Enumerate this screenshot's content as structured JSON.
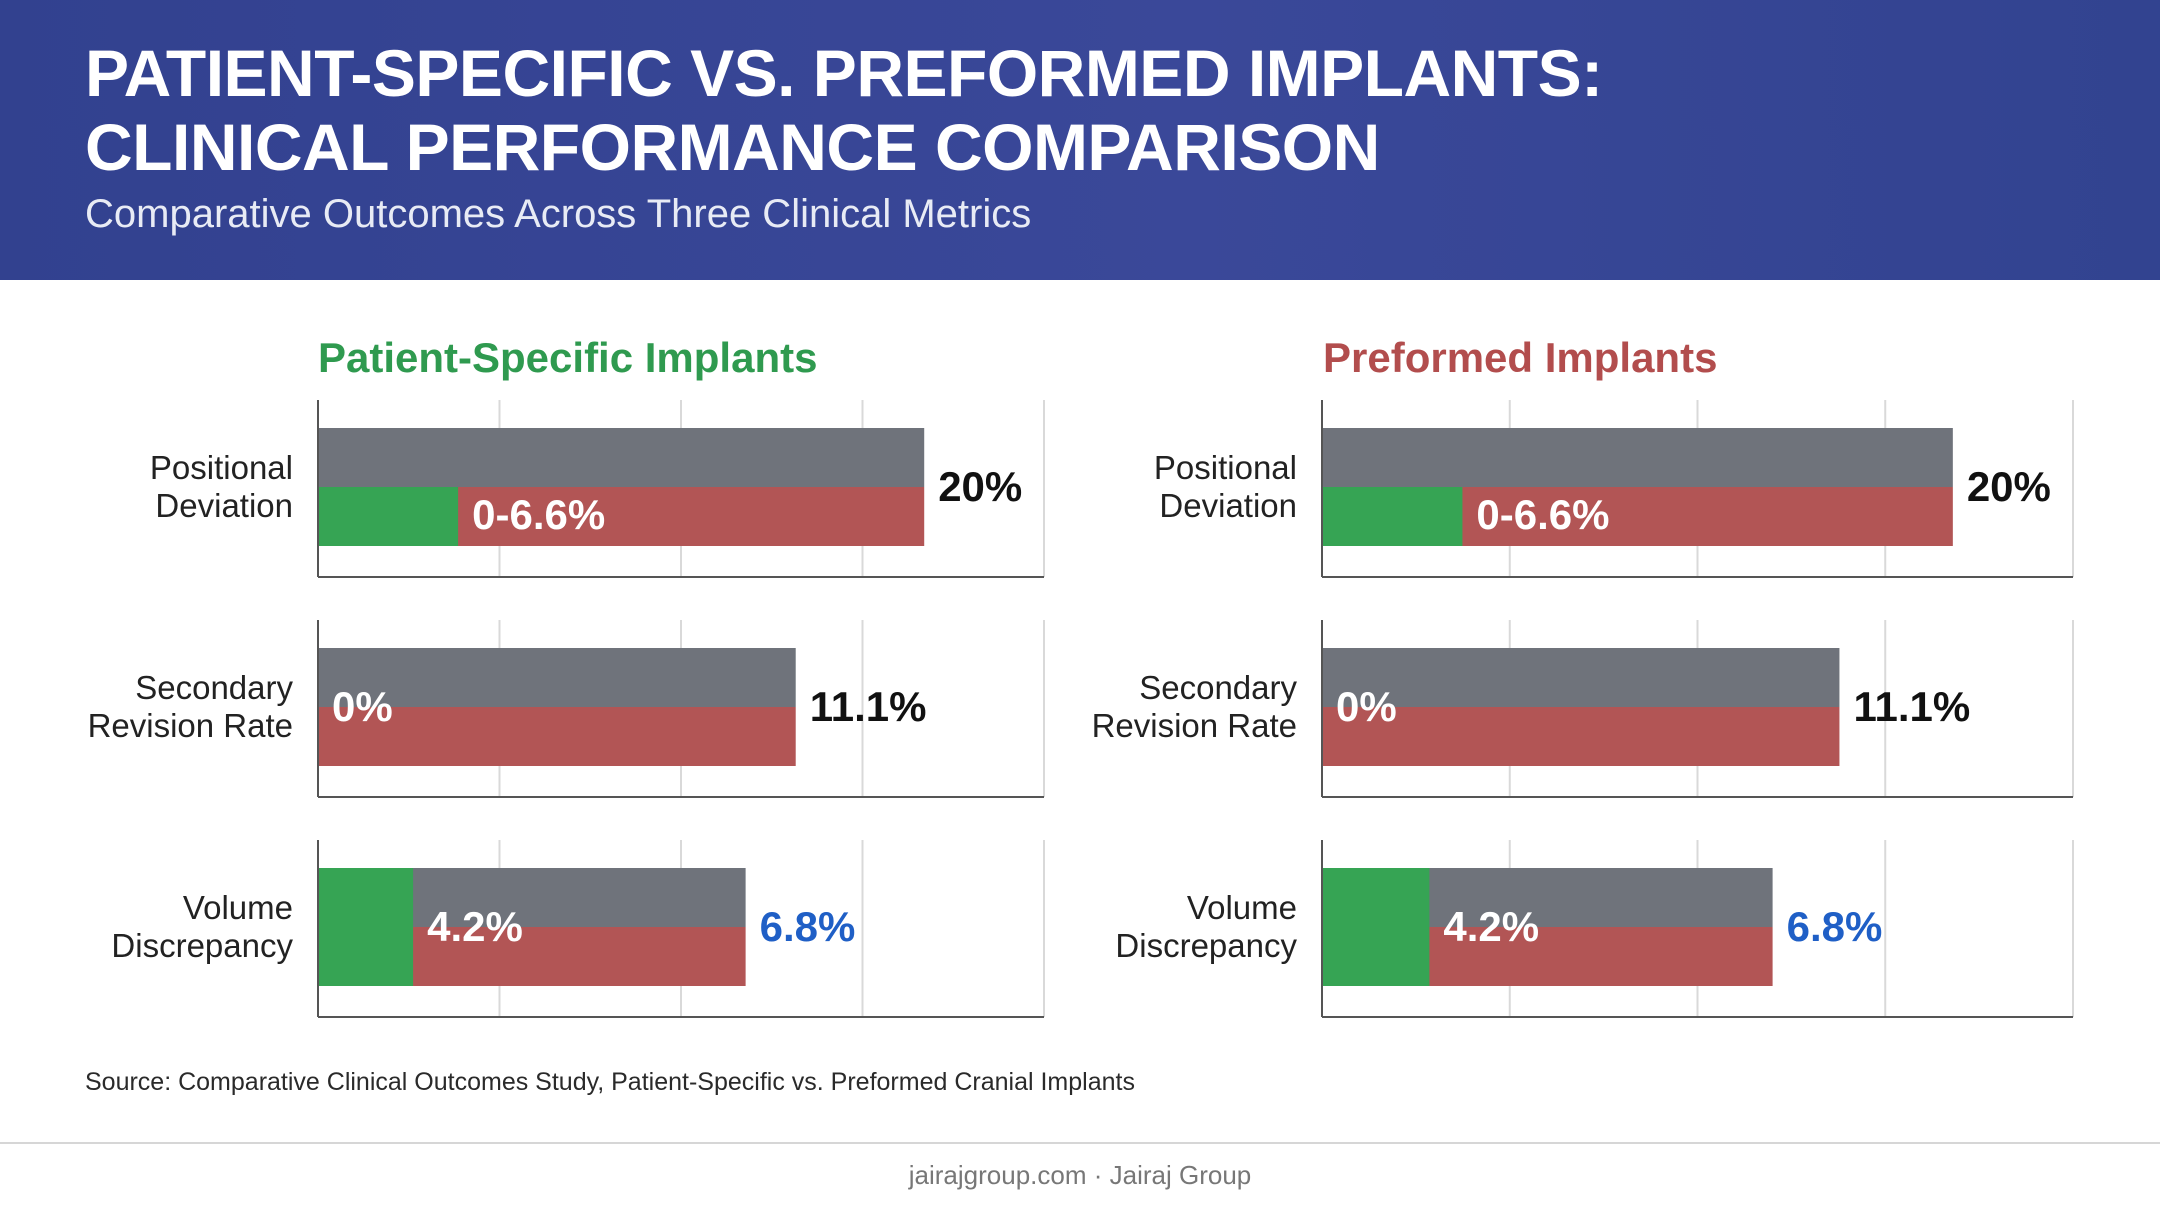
{
  "header": {
    "title": "PATIENT-SPECIFIC VS. PREFORMED IMPLANTS:\nCLINICAL PERFORMANCE COMPARISON",
    "subtitle": "Comparative Outcomes Across Three Clinical Metrics"
  },
  "colors": {
    "header_bg": "#3a4899",
    "patient_specific": "#36a454",
    "preformed": "#b25555",
    "gray_bar": "#6f737b",
    "value_blue": "#1f5fc6",
    "value_black": "#111111",
    "value_white": "#ffffff"
  },
  "chart_data": [
    {
      "type": "bar",
      "title": "Patient-Specific Implants",
      "title_color": "#2f9a4f",
      "categories": [
        "Positional\nDeviation",
        "Secondary\nRevision Rate",
        "Volume\nDiscrepancy"
      ],
      "xlim": [
        0,
        100
      ],
      "grid": true,
      "rows": [
        {
          "gray": 83.5,
          "red": 83.5,
          "green": 19.3,
          "inner_label": "0-6.6%",
          "outer_label": "20%",
          "outer_color": "#111111"
        },
        {
          "gray": 65.8,
          "red": 65.8,
          "green": 0,
          "inner_label": "0%",
          "outer_label": "11.1%",
          "outer_color": "#111111"
        },
        {
          "gray": 58.9,
          "red": 58.9,
          "green": 13.1,
          "inner_label": "4.2%",
          "outer_label": "6.8%",
          "outer_color": "#1f5fc6"
        }
      ]
    },
    {
      "type": "bar",
      "title": "Preformed Implants",
      "title_color": "#b24d4d",
      "categories": [
        "Positional\nDeviation",
        "Secondary\nRevision Rate",
        "Volume\nDiscrepancy"
      ],
      "xlim": [
        0,
        100
      ],
      "grid": true,
      "rows": [
        {
          "gray": 84.0,
          "red": 84.0,
          "green": 18.7,
          "inner_label": "0-6.6%",
          "outer_label": "20%",
          "outer_color": "#111111"
        },
        {
          "gray": 68.9,
          "red": 68.9,
          "green": 0,
          "inner_label": "0%",
          "outer_label": "11.1%",
          "outer_color": "#111111"
        },
        {
          "gray": 60.0,
          "red": 60.0,
          "green": 14.3,
          "inner_label": "4.2%",
          "outer_label": "6.8%",
          "outer_color": "#1f5fc6"
        }
      ]
    }
  ],
  "source": "Source: Comparative Clinical Outcomes Study, Patient-Specific vs. Preformed Cranial Implants",
  "footer": "jairajgroup.com · Jairaj Group"
}
